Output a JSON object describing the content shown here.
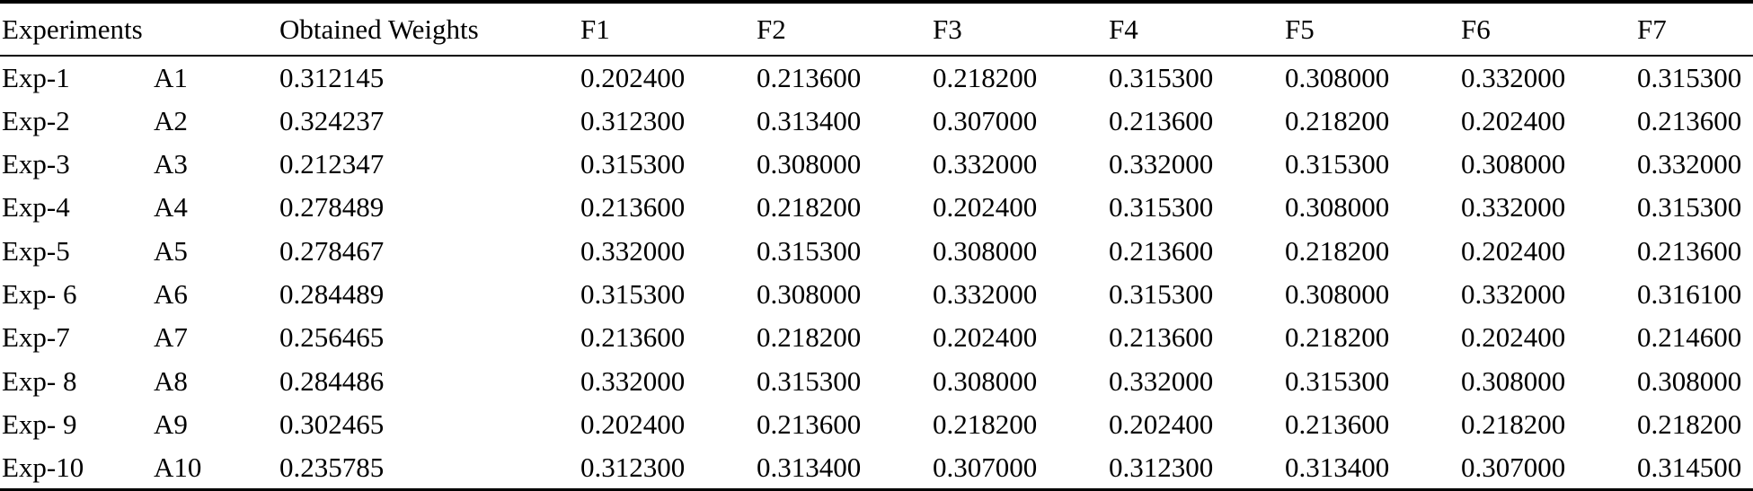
{
  "page": {
    "background_color": "#ffffff",
    "text_color": "#000000"
  },
  "table": {
    "header": {
      "experiments": "Experiments",
      "obtained_weights": "Obtained Weights",
      "factors": [
        "F1",
        "F2",
        "F3",
        "F4",
        "F5",
        "F6",
        "F7"
      ]
    },
    "rows": [
      {
        "experiment": "Exp-1",
        "alternative": "A1",
        "obtained_weight": "0.312145",
        "factor_values": [
          "0.202400",
          "0.213600",
          "0.218200",
          "0.315300",
          "0.308000",
          "0.332000",
          "0.315300"
        ]
      },
      {
        "experiment": "Exp-2",
        "alternative": "A2",
        "obtained_weight": "0.324237",
        "factor_values": [
          "0.312300",
          "0.313400",
          "0.307000",
          "0.213600",
          "0.218200",
          "0.202400",
          "0.213600"
        ]
      },
      {
        "experiment": "Exp-3",
        "alternative": "A3",
        "obtained_weight": "0.212347",
        "factor_values": [
          "0.315300",
          "0.308000",
          "0.332000",
          "0.332000",
          "0.315300",
          "0.308000",
          "0.332000"
        ]
      },
      {
        "experiment": "Exp-4",
        "alternative": "A4",
        "obtained_weight": "0.278489",
        "factor_values": [
          "0.213600",
          "0.218200",
          "0.202400",
          "0.315300",
          "0.308000",
          "0.332000",
          "0.315300"
        ]
      },
      {
        "experiment": "Exp-5",
        "alternative": "A5",
        "obtained_weight": "0.278467",
        "factor_values": [
          "0.332000",
          "0.315300",
          "0.308000",
          "0.213600",
          "0.218200",
          "0.202400",
          "0.213600"
        ]
      },
      {
        "experiment": "Exp- 6",
        "alternative": "A6",
        "obtained_weight": "0.284489",
        "factor_values": [
          "0.315300",
          "0.308000",
          "0.332000",
          "0.315300",
          "0.308000",
          "0.332000",
          "0.316100"
        ]
      },
      {
        "experiment": "Exp-7",
        "alternative": "A7",
        "obtained_weight": "0.256465",
        "factor_values": [
          "0.213600",
          "0.218200",
          "0.202400",
          "0.213600",
          "0.218200",
          "0.202400",
          "0.214600"
        ]
      },
      {
        "experiment": "Exp- 8",
        "alternative": "A8",
        "obtained_weight": "0.284486",
        "factor_values": [
          "0.332000",
          "0.315300",
          "0.308000",
          "0.332000",
          "0.315300",
          "0.308000",
          "0.308000"
        ]
      },
      {
        "experiment": "Exp- 9",
        "alternative": "A9",
        "obtained_weight": "0.302465",
        "factor_values": [
          "0.202400",
          "0.213600",
          "0.218200",
          "0.202400",
          "0.213600",
          "0.218200",
          "0.218200"
        ]
      },
      {
        "experiment": "Exp-10",
        "alternative": "A10",
        "obtained_weight": "0.235785",
        "factor_values": [
          "0.312300",
          "0.313400",
          "0.307000",
          "0.312300",
          "0.313400",
          "0.307000",
          "0.314500"
        ]
      }
    ]
  }
}
